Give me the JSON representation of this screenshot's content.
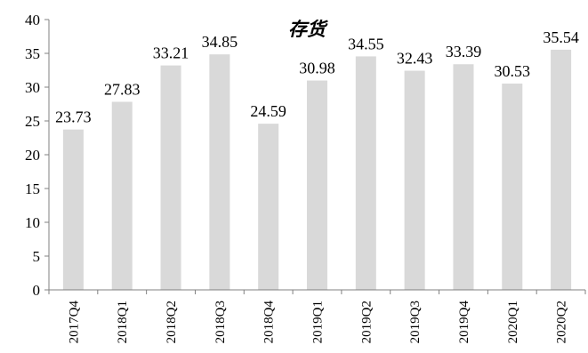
{
  "chart_data": {
    "type": "bar",
    "title": "存货",
    "categories": [
      "2017Q4",
      "2018Q1",
      "2018Q2",
      "2018Q3",
      "2018Q4",
      "2019Q1",
      "2019Q2",
      "2019Q3",
      "2019Q4",
      "2020Q1",
      "2020Q2"
    ],
    "values": [
      23.73,
      27.83,
      33.21,
      34.85,
      24.59,
      30.98,
      34.55,
      32.43,
      33.39,
      30.53,
      35.54
    ],
    "value_labels": [
      "23.73",
      "27.83",
      "33.21",
      "34.85",
      "24.59",
      "30.98",
      "34.55",
      "32.43",
      "33.39",
      "30.53",
      "35.54"
    ],
    "ylim": [
      0,
      40
    ],
    "yticks": [
      0,
      5,
      10,
      15,
      20,
      25,
      30,
      35,
      40
    ],
    "xlabel": "",
    "ylabel": "",
    "grid": false,
    "legend": "none",
    "bar_color": "#d9d9d9",
    "axis_color": "#808080"
  }
}
